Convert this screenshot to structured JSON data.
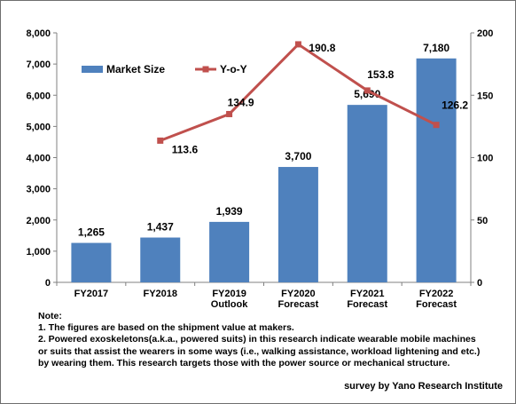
{
  "chart_data": {
    "type": "bar+line",
    "categories": [
      [
        "FY2017"
      ],
      [
        "FY2018"
      ],
      [
        "FY2019",
        "Outlook"
      ],
      [
        "FY2020",
        "Forecast"
      ],
      [
        "FY2021",
        "Forecast"
      ],
      [
        "FY2022",
        "Forecast"
      ]
    ],
    "series": [
      {
        "name": "Market Size",
        "type": "bar",
        "axis": "left",
        "values": [
          1265,
          1437,
          1939,
          3700,
          5690,
          7180
        ],
        "labels": [
          "1,265",
          "1,437",
          "1,939",
          "3,700",
          "5,690",
          "7,180"
        ],
        "color": "#4f81bd"
      },
      {
        "name": "Y-o-Y",
        "type": "line",
        "axis": "right",
        "values": [
          null,
          113.6,
          134.9,
          190.8,
          153.8,
          126.2
        ],
        "labels": [
          "",
          "113.6",
          "134.9",
          "190.8",
          "153.8",
          "126.2"
        ],
        "color": "#c0504d"
      }
    ],
    "y_left": {
      "ylim": [
        0,
        8000
      ],
      "ticks": [
        0,
        1000,
        2000,
        3000,
        4000,
        5000,
        6000,
        7000,
        8000
      ],
      "tick_labels": [
        "0",
        "1,000",
        "2,000",
        "3,000",
        "4,000",
        "5,000",
        "6,000",
        "7,000",
        "8,000"
      ]
    },
    "y_right": {
      "ylim": [
        0,
        200
      ],
      "ticks": [
        0,
        50,
        100,
        150,
        200
      ],
      "tick_labels": [
        "0",
        "50",
        "100",
        "150",
        "200"
      ]
    },
    "grid": false,
    "legend": "top-left"
  },
  "notes": {
    "heading": "Note:",
    "lines": [
      "1. The figures are based on the shipment value at makers.",
      "2. Powered exoskeletons(a.k.a., powered suits) in this research indicate wearable mobile machines",
      "or suits that assist the wearers in some ways (i.e., walking assistance, workload lightening and etc.)",
      "by wearing them. This research targets those with the power source or mechanical structure."
    ]
  },
  "source": "survey by Yano Research Institute"
}
